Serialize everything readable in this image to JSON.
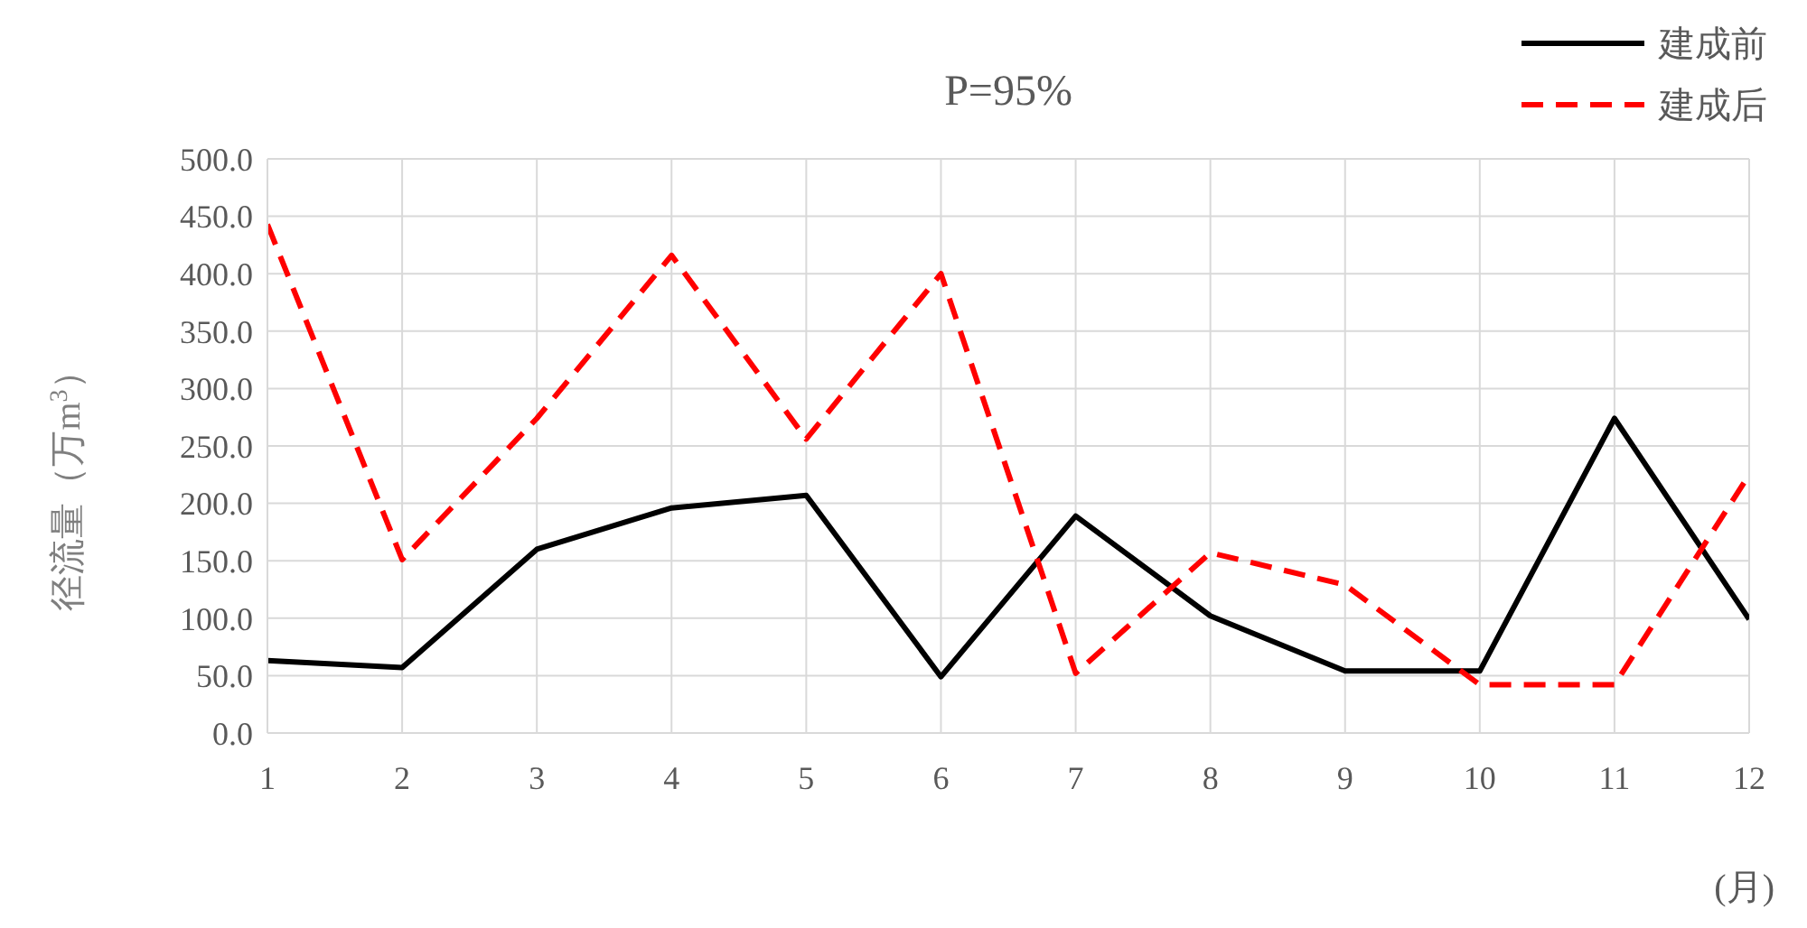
{
  "chart_data": {
    "type": "line",
    "title": "P=95%",
    "xlabel": "(月)",
    "ylabel": "径流量（万m$^{3}$）",
    "x": [
      1,
      2,
      3,
      4,
      5,
      6,
      7,
      8,
      9,
      10,
      11,
      12
    ],
    "xlim": [
      1,
      12
    ],
    "xticks": [
      1,
      2,
      3,
      4,
      5,
      6,
      7,
      8,
      9,
      10,
      11,
      12
    ],
    "ylim": [
      0,
      500
    ],
    "yticks": [
      {
        "value": 0,
        "label": "0.0"
      },
      {
        "value": 50,
        "label": "50.0"
      },
      {
        "value": 100,
        "label": "100.0"
      },
      {
        "value": 150,
        "label": "150.0"
      },
      {
        "value": 200,
        "label": "200.0"
      },
      {
        "value": 250,
        "label": "250.0"
      },
      {
        "value": 300,
        "label": "300.0"
      },
      {
        "value": 350,
        "label": "350.0"
      },
      {
        "value": 400,
        "label": "400.0"
      },
      {
        "value": 450,
        "label": "450.0"
      },
      {
        "value": 500,
        "label": "500.0"
      }
    ],
    "grid": true,
    "legend": "top right",
    "marker": "none",
    "series": [
      {
        "name": "建成前",
        "color": "#000000",
        "line_style": "solid",
        "values": [
          63,
          57,
          160,
          196,
          207,
          49,
          189,
          102,
          54,
          54,
          274,
          99
        ]
      },
      {
        "name": "建成后",
        "color": "#ff0000",
        "line_style": "dashed",
        "values": [
          443,
          151,
          274,
          416,
          256,
          400,
          52,
          157,
          129,
          42,
          42,
          225
        ]
      }
    ]
  }
}
